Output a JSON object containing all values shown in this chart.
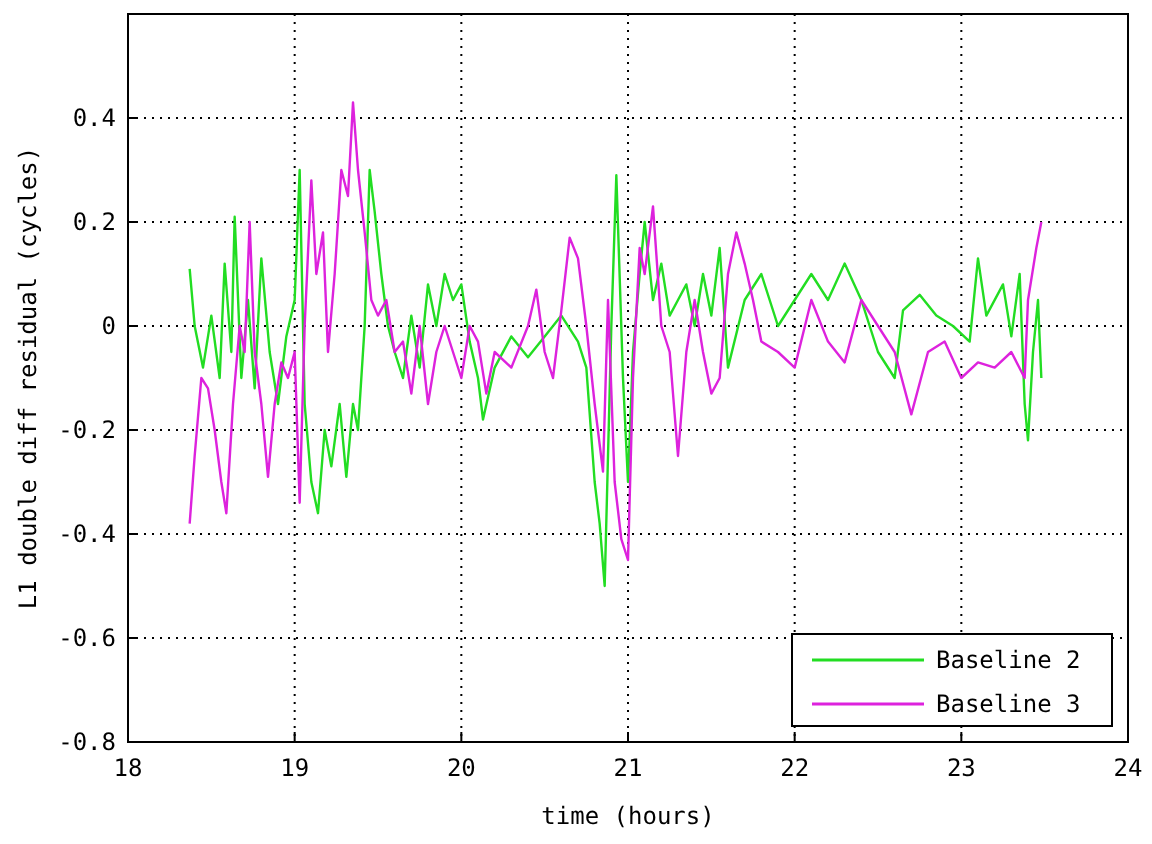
{
  "chart_data": {
    "type": "line",
    "xlabel": "time (hours)",
    "ylabel": "L1 double diff residual (cycles)",
    "xlim": [
      18,
      24
    ],
    "xticks": [
      18,
      19,
      20,
      21,
      22,
      23,
      24
    ],
    "ylim": [
      -0.8,
      0.6
    ],
    "yticks": [
      -0.8,
      -0.6,
      -0.4,
      -0.2,
      0,
      0.2,
      0.4
    ],
    "grid": true,
    "legend": "bottom right",
    "marker": "none",
    "line_style": "solid",
    "series": [
      {
        "name": "Baseline 2",
        "color": "#22dd22",
        "x": [
          18.37,
          18.4,
          18.45,
          18.5,
          18.55,
          18.58,
          18.62,
          18.64,
          18.68,
          18.72,
          18.76,
          18.8,
          18.85,
          18.9,
          18.95,
          19.0,
          19.03,
          19.06,
          19.1,
          19.14,
          19.18,
          19.22,
          19.27,
          19.31,
          19.35,
          19.38,
          19.42,
          19.45,
          19.48,
          19.52,
          19.56,
          19.6,
          19.65,
          19.7,
          19.75,
          19.8,
          19.85,
          19.9,
          19.95,
          20.0,
          20.05,
          20.1,
          20.13,
          20.2,
          20.3,
          20.4,
          20.5,
          20.6,
          20.7,
          20.75,
          20.8,
          20.83,
          20.86,
          20.9,
          20.93,
          20.97,
          21.0,
          21.03,
          21.07,
          21.1,
          21.15,
          21.2,
          21.25,
          21.3,
          21.35,
          21.4,
          21.45,
          21.5,
          21.55,
          21.6,
          21.7,
          21.8,
          21.9,
          22.0,
          22.1,
          22.2,
          22.3,
          22.4,
          22.5,
          22.6,
          22.65,
          22.75,
          22.85,
          22.95,
          23.05,
          23.1,
          23.15,
          23.25,
          23.3,
          23.35,
          23.38,
          23.4,
          23.43,
          23.46,
          23.48
        ],
        "values": [
          0.11,
          0.0,
          -0.08,
          0.02,
          -0.1,
          0.12,
          -0.05,
          0.21,
          -0.1,
          0.05,
          -0.12,
          0.13,
          -0.05,
          -0.15,
          -0.02,
          0.05,
          0.3,
          -0.15,
          -0.3,
          -0.36,
          -0.2,
          -0.27,
          -0.15,
          -0.29,
          -0.15,
          -0.2,
          0.0,
          0.3,
          0.22,
          0.1,
          0.0,
          -0.05,
          -0.1,
          0.02,
          -0.08,
          0.08,
          0.0,
          0.1,
          0.05,
          0.08,
          -0.03,
          -0.1,
          -0.18,
          -0.08,
          -0.02,
          -0.06,
          -0.02,
          0.02,
          -0.03,
          -0.08,
          -0.3,
          -0.38,
          -0.5,
          0.0,
          0.29,
          -0.1,
          -0.3,
          -0.05,
          0.1,
          0.2,
          0.05,
          0.12,
          0.02,
          0.05,
          0.08,
          0.0,
          0.1,
          0.02,
          0.15,
          -0.08,
          0.05,
          0.1,
          0.0,
          0.05,
          0.1,
          0.05,
          0.12,
          0.05,
          -0.05,
          -0.1,
          0.03,
          0.06,
          0.02,
          0.0,
          -0.03,
          0.13,
          0.02,
          0.08,
          -0.02,
          0.1,
          -0.15,
          -0.22,
          -0.05,
          0.05,
          -0.1
        ]
      },
      {
        "name": "Baseline 3",
        "color": "#dd22dd",
        "x": [
          18.37,
          18.4,
          18.44,
          18.48,
          18.52,
          18.56,
          18.59,
          18.63,
          18.67,
          18.7,
          18.73,
          18.76,
          18.8,
          18.84,
          18.88,
          18.92,
          18.96,
          19.0,
          19.03,
          19.06,
          19.1,
          19.13,
          19.17,
          19.2,
          19.24,
          19.28,
          19.32,
          19.35,
          19.38,
          19.42,
          19.46,
          19.5,
          19.55,
          19.6,
          19.65,
          19.7,
          19.75,
          19.8,
          19.85,
          19.9,
          19.95,
          20.0,
          20.05,
          20.1,
          20.15,
          20.2,
          20.3,
          20.4,
          20.45,
          20.5,
          20.55,
          20.6,
          20.65,
          20.7,
          20.75,
          20.8,
          20.85,
          20.88,
          20.92,
          20.96,
          21.0,
          21.03,
          21.07,
          21.1,
          21.15,
          21.2,
          21.25,
          21.3,
          21.35,
          21.4,
          21.45,
          21.5,
          21.55,
          21.6,
          21.65,
          21.7,
          21.75,
          21.8,
          21.9,
          22.0,
          22.1,
          22.2,
          22.3,
          22.4,
          22.5,
          22.6,
          22.7,
          22.8,
          22.9,
          23.0,
          23.1,
          23.2,
          23.3,
          23.38,
          23.4,
          23.45,
          23.48
        ],
        "values": [
          -0.38,
          -0.25,
          -0.1,
          -0.12,
          -0.2,
          -0.3,
          -0.36,
          -0.15,
          0.0,
          -0.05,
          0.2,
          -0.05,
          -0.15,
          -0.29,
          -0.15,
          -0.07,
          -0.1,
          -0.05,
          -0.34,
          0.0,
          0.28,
          0.1,
          0.18,
          -0.05,
          0.1,
          0.3,
          0.25,
          0.43,
          0.3,
          0.18,
          0.05,
          0.02,
          0.05,
          -0.05,
          -0.03,
          -0.13,
          0.0,
          -0.15,
          -0.05,
          0.0,
          -0.05,
          -0.1,
          0.0,
          -0.03,
          -0.13,
          -0.05,
          -0.08,
          0.0,
          0.07,
          -0.05,
          -0.1,
          0.03,
          0.17,
          0.13,
          0.0,
          -0.15,
          -0.28,
          0.05,
          -0.3,
          -0.41,
          -0.45,
          -0.1,
          0.15,
          0.1,
          0.23,
          0.0,
          -0.05,
          -0.25,
          -0.05,
          0.05,
          -0.05,
          -0.13,
          -0.1,
          0.1,
          0.18,
          0.12,
          0.05,
          -0.03,
          -0.05,
          -0.08,
          0.05,
          -0.03,
          -0.07,
          0.05,
          0.0,
          -0.05,
          -0.17,
          -0.05,
          -0.03,
          -0.1,
          -0.07,
          -0.08,
          -0.05,
          -0.1,
          0.05,
          0.15,
          0.2
        ]
      }
    ]
  }
}
